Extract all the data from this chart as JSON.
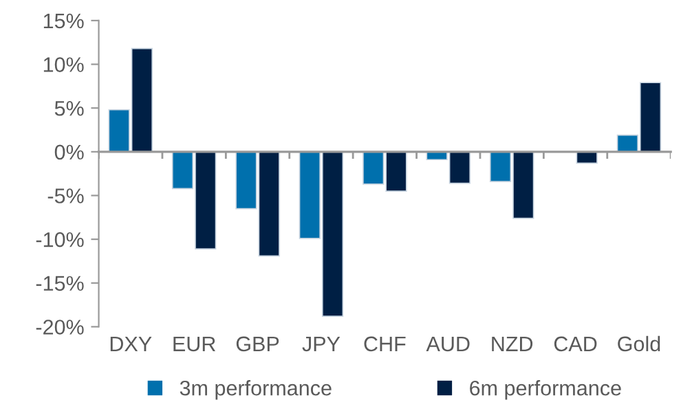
{
  "chart_data": {
    "type": "bar",
    "categories": [
      "DXY",
      "EUR",
      "GBP",
      "JPY",
      "CHF",
      "AUD",
      "NZD",
      "CAD",
      "Gold"
    ],
    "series": [
      {
        "name": "3m performance",
        "color": "#0070ad",
        "values": [
          4.8,
          -4.2,
          -6.5,
          -9.9,
          -3.7,
          -0.9,
          -3.4,
          null,
          1.9
        ]
      },
      {
        "name": "6m performance",
        "color": "#001f44",
        "values": [
          11.8,
          -11.1,
          -11.9,
          -18.8,
          -4.5,
          -3.6,
          -7.6,
          -1.3,
          7.9
        ]
      }
    ],
    "ylim": [
      -20,
      15
    ],
    "yticks": [
      {
        "value": -20,
        "label": "-20%"
      },
      {
        "value": -15,
        "label": "-15%"
      },
      {
        "value": -10,
        "label": "-10%"
      },
      {
        "value": -5,
        "label": "-5%"
      },
      {
        "value": 0,
        "label": "0%"
      },
      {
        "value": 5,
        "label": "5%"
      },
      {
        "value": 10,
        "label": "10%"
      },
      {
        "value": 15,
        "label": "15%"
      }
    ],
    "legend": "bottom"
  }
}
